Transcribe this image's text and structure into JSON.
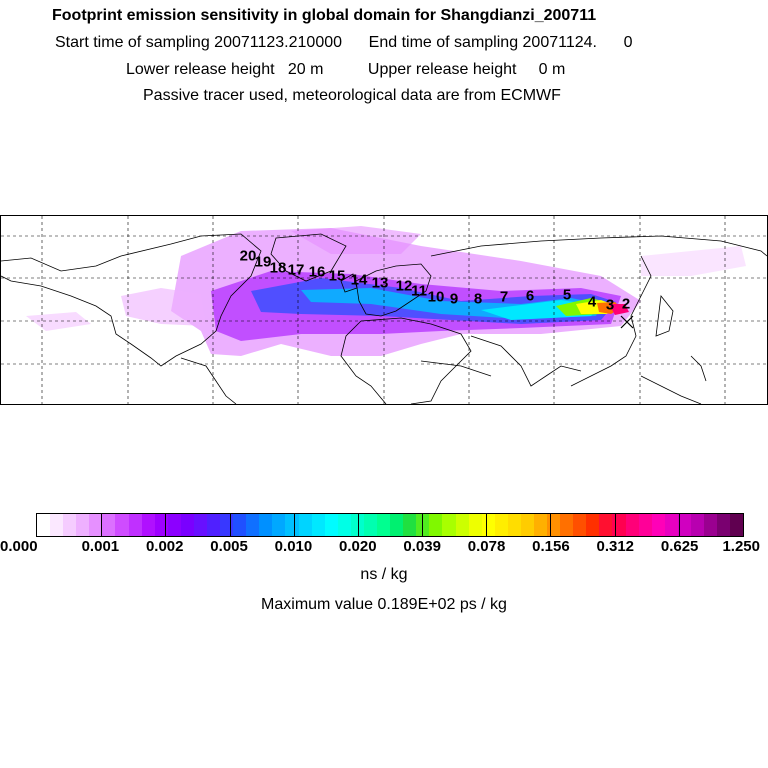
{
  "header": {
    "title": "Footprint emission sensitivity in global domain for Shangdianzi_200711",
    "line2": "Start time of sampling 20071123.210000      End time of sampling 20071124.      0",
    "line3": "Lower release height   20 m          Upper release height     0 m",
    "line4": "Passive tracer used, meteorological data are from ECMWF"
  },
  "map": {
    "trajectory_labels": [
      "2",
      "3",
      "4",
      "5",
      "6",
      "7",
      "8",
      "9",
      "10",
      "11",
      "12",
      "13",
      "14",
      "15",
      "16",
      "17",
      "18",
      "19",
      "20"
    ],
    "colors": {
      "grid": "#000000",
      "coast": "#000000"
    }
  },
  "colorbar": {
    "tick_labels": [
      "0.000",
      "0.001",
      "0.002",
      "0.005",
      "0.010",
      "0.020",
      "0.039",
      "0.078",
      "0.156",
      "0.312",
      "0.625",
      "1.250"
    ],
    "colors": [
      "#ffffff",
      "#fbe8ff",
      "#f5ccff",
      "#eeb0ff",
      "#e690ff",
      "#dc70ff",
      "#cf4cff",
      "#c030ff",
      "#b010ff",
      "#9e00ff",
      "#8c00ff",
      "#7a00ff",
      "#6810ff",
      "#5020ff",
      "#3838ff",
      "#2050ff",
      "#1070ff",
      "#0090ff",
      "#00a8ff",
      "#00c0ff",
      "#00d4ff",
      "#00e8ff",
      "#00fcff",
      "#00ffe6",
      "#00ffcc",
      "#00ffb0",
      "#00ff90",
      "#00f070",
      "#20e040",
      "#50ec20",
      "#80f800",
      "#a8ff00",
      "#ccff00",
      "#eeff00",
      "#ffff00",
      "#ffee00",
      "#ffdd00",
      "#ffcc00",
      "#ffb000",
      "#ff9000",
      "#ff7000",
      "#ff5000",
      "#ff3000",
      "#ff1030",
      "#ff0050",
      "#ff0078",
      "#ff0098",
      "#ff00b8",
      "#e800c0",
      "#d000c0",
      "#b800b0",
      "#9a0090",
      "#7a0070",
      "#600050"
    ],
    "units": "ns / kg"
  },
  "footer": {
    "max_value": "Maximum value  0.189E+02 ps / kg"
  }
}
